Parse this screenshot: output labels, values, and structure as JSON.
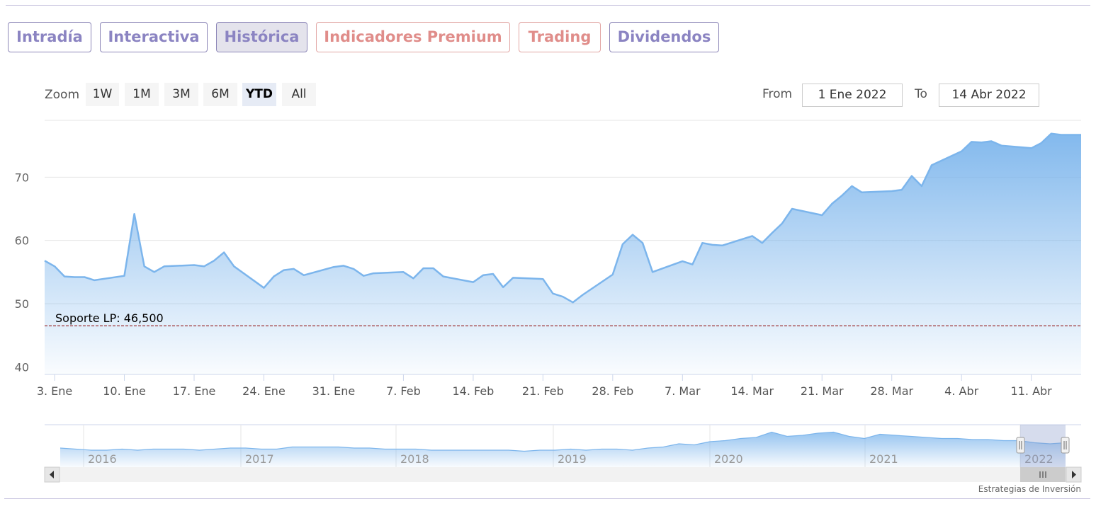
{
  "tabs": [
    {
      "label": "Intradía",
      "style": "normal"
    },
    {
      "label": "Interactiva",
      "style": "normal"
    },
    {
      "label": "Histórica",
      "style": "active"
    },
    {
      "label": "Indicadores Premium",
      "style": "warm"
    },
    {
      "label": "Trading",
      "style": "warm"
    },
    {
      "label": "Dividendos",
      "style": "normal"
    }
  ],
  "zoom": {
    "label": "Zoom",
    "buttons": [
      "1W",
      "1M",
      "3M",
      "6M",
      "YTD",
      "All"
    ],
    "selected": "YTD"
  },
  "range": {
    "from_label": "From",
    "from_value": "1 Ene 2022",
    "to_label": "To",
    "to_value": "14 Abr 2022"
  },
  "credit": "Estrategias de Inversión",
  "colors": {
    "line": "#7cb5ec",
    "support": "#8b0000",
    "tab_text": "#8b84c2",
    "tab_warm": "#e08d8a"
  },
  "chart_data": {
    "type": "area",
    "ylim": [
      38.8,
      79
    ],
    "yticks": [
      40,
      50,
      60,
      70
    ],
    "xlim": [
      "2022-01-02",
      "2022-04-16"
    ],
    "xticks": [
      {
        "date": "2022-01-03",
        "label": "3. Ene"
      },
      {
        "date": "2022-01-10",
        "label": "10. Ene"
      },
      {
        "date": "2022-01-17",
        "label": "17. Ene"
      },
      {
        "date": "2022-01-24",
        "label": "24. Ene"
      },
      {
        "date": "2022-01-31",
        "label": "31. Ene"
      },
      {
        "date": "2022-02-07",
        "label": "7. Feb"
      },
      {
        "date": "2022-02-14",
        "label": "14. Feb"
      },
      {
        "date": "2022-02-21",
        "label": "21. Feb"
      },
      {
        "date": "2022-02-28",
        "label": "28. Feb"
      },
      {
        "date": "2022-03-07",
        "label": "7. Mar"
      },
      {
        "date": "2022-03-14",
        "label": "14. Mar"
      },
      {
        "date": "2022-03-21",
        "label": "21. Mar"
      },
      {
        "date": "2022-03-28",
        "label": "28. Mar"
      },
      {
        "date": "2022-04-04",
        "label": "4. Abr"
      },
      {
        "date": "2022-04-11",
        "label": "11. Abr"
      }
    ],
    "series": [
      {
        "x": [
          "2022-01-02",
          "2022-01-03",
          "2022-01-04",
          "2022-01-05",
          "2022-01-06",
          "2022-01-07",
          "2022-01-10",
          "2022-01-11",
          "2022-01-12",
          "2022-01-13",
          "2022-01-14",
          "2022-01-17",
          "2022-01-18",
          "2022-01-19",
          "2022-01-20",
          "2022-01-21",
          "2022-01-24",
          "2022-01-25",
          "2022-01-26",
          "2022-01-27",
          "2022-01-28",
          "2022-01-31",
          "2022-02-01",
          "2022-02-02",
          "2022-02-03",
          "2022-02-04",
          "2022-02-07",
          "2022-02-08",
          "2022-02-09",
          "2022-02-10",
          "2022-02-11",
          "2022-02-14",
          "2022-02-15",
          "2022-02-16",
          "2022-02-17",
          "2022-02-18",
          "2022-02-21",
          "2022-02-22",
          "2022-02-23",
          "2022-02-24",
          "2022-02-25",
          "2022-02-28",
          "2022-03-01",
          "2022-03-02",
          "2022-03-03",
          "2022-03-04",
          "2022-03-07",
          "2022-03-08",
          "2022-03-09",
          "2022-03-10",
          "2022-03-11",
          "2022-03-14",
          "2022-03-15",
          "2022-03-16",
          "2022-03-17",
          "2022-03-18",
          "2022-03-21",
          "2022-03-22",
          "2022-03-23",
          "2022-03-24",
          "2022-03-25",
          "2022-03-28",
          "2022-03-29",
          "2022-03-30",
          "2022-03-31",
          "2022-04-01",
          "2022-04-04",
          "2022-04-05",
          "2022-04-06",
          "2022-04-07",
          "2022-04-08",
          "2022-04-11",
          "2022-04-12",
          "2022-04-13",
          "2022-04-14",
          "2022-04-16"
        ],
        "values": [
          56.8,
          55.9,
          54.3,
          54.2,
          54.2,
          53.7,
          54.4,
          64.2,
          55.9,
          55.0,
          55.9,
          56.1,
          55.9,
          56.8,
          58.1,
          55.9,
          52.5,
          54.3,
          55.3,
          55.5,
          54.5,
          55.8,
          56.0,
          55.5,
          54.4,
          54.8,
          55.0,
          54.0,
          55.6,
          55.6,
          54.3,
          53.4,
          54.5,
          54.7,
          52.6,
          54.1,
          53.9,
          51.6,
          51.1,
          50.2,
          51.4,
          54.6,
          59.4,
          60.9,
          59.6,
          55.0,
          56.7,
          56.2,
          59.6,
          59.3,
          59.2,
          60.7,
          59.6,
          61.2,
          62.7,
          65.0,
          64.0,
          65.8,
          67.1,
          68.6,
          67.6,
          67.8,
          68.0,
          70.2,
          68.6,
          71.9,
          74.1,
          75.6,
          75.5,
          75.7,
          75.0,
          74.6,
          75.4,
          76.9,
          76.7,
          76.7
        ]
      }
    ],
    "annotations": [
      {
        "type": "hline",
        "y": 46.5,
        "label": "Soporte LP: 46,500"
      }
    ],
    "navigator": {
      "year_labels": [
        "2016",
        "2017",
        "2018",
        "2019",
        "2020",
        "2021",
        "2022"
      ],
      "values": [
        48,
        47,
        46,
        46,
        47,
        46,
        47,
        47,
        47,
        46,
        47,
        48,
        48,
        47,
        47,
        49,
        49,
        49,
        49,
        48,
        48,
        47,
        47,
        47,
        46,
        46,
        46,
        46,
        46,
        46,
        45,
        46,
        46,
        47,
        46,
        47,
        47,
        46,
        48,
        49,
        52,
        51,
        54,
        55,
        57,
        58,
        63,
        59,
        60,
        62,
        63,
        59,
        57,
        61,
        60,
        59,
        58,
        57,
        57,
        56,
        56,
        55,
        55,
        53,
        52,
        53
      ]
    }
  }
}
